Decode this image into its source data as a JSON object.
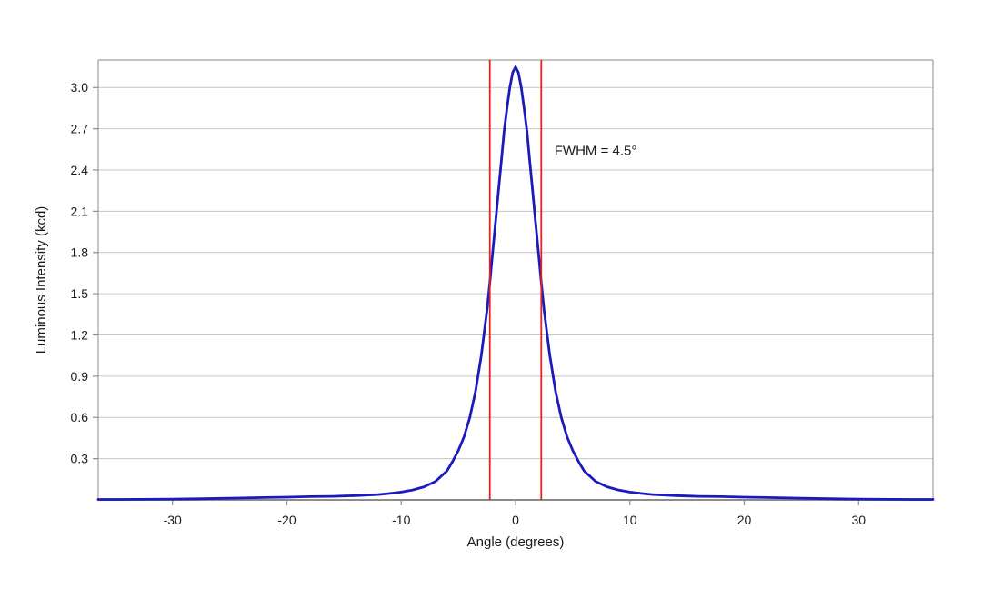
{
  "chart_data": {
    "type": "line",
    "title": "",
    "xlabel": "Angle (degrees)",
    "ylabel": "Luminous Intensity (kcd)",
    "xlim": [
      -36.5,
      36.5
    ],
    "ylim": [
      0,
      3.2
    ],
    "x_ticks": [
      -30,
      -20,
      -10,
      0,
      10,
      20,
      30
    ],
    "y_ticks": [
      0.3,
      0.6,
      0.9,
      1.2,
      1.5,
      1.8,
      2.1,
      2.4,
      2.7,
      3.0
    ],
    "grid": "horizontal",
    "legend": "none",
    "annotation": {
      "text": "FWHM = 4.5°",
      "x": 3.4,
      "y": 2.51
    },
    "reference_lines": [
      {
        "axis": "x",
        "value": -2.25,
        "color": "#e02222",
        "meaning": "fwhm-left"
      },
      {
        "axis": "x",
        "value": 2.25,
        "color": "#e02222",
        "meaning": "fwhm-right"
      }
    ],
    "series": [
      {
        "name": "luminous-intensity",
        "color": "#1a1abe",
        "peak": {
          "x": 0,
          "y": 3.15
        },
        "fwhm_degrees": 4.5,
        "points": [
          [
            -36.5,
            0.003
          ],
          [
            -35,
            0.003
          ],
          [
            -33,
            0.004
          ],
          [
            -30,
            0.006
          ],
          [
            -28,
            0.008
          ],
          [
            -25,
            0.012
          ],
          [
            -22,
            0.017
          ],
          [
            -20,
            0.02
          ],
          [
            -18,
            0.024
          ],
          [
            -16,
            0.026
          ],
          [
            -14,
            0.031
          ],
          [
            -12,
            0.039
          ],
          [
            -11,
            0.047
          ],
          [
            -10,
            0.057
          ],
          [
            -9,
            0.072
          ],
          [
            -8,
            0.095
          ],
          [
            -7,
            0.135
          ],
          [
            -6,
            0.21
          ],
          [
            -5.5,
            0.28
          ],
          [
            -5,
            0.36
          ],
          [
            -4.5,
            0.46
          ],
          [
            -4,
            0.6
          ],
          [
            -3.5,
            0.79
          ],
          [
            -3,
            1.05
          ],
          [
            -2.5,
            1.38
          ],
          [
            -2.25,
            1.58
          ],
          [
            -2,
            1.8
          ],
          [
            -1.75,
            2.02
          ],
          [
            -1.5,
            2.24
          ],
          [
            -1.25,
            2.46
          ],
          [
            -1,
            2.68
          ],
          [
            -0.75,
            2.85
          ],
          [
            -0.5,
            3.0
          ],
          [
            -0.25,
            3.11
          ],
          [
            0,
            3.15
          ],
          [
            0.25,
            3.11
          ],
          [
            0.5,
            3.0
          ],
          [
            0.75,
            2.85
          ],
          [
            1,
            2.68
          ],
          [
            1.25,
            2.46
          ],
          [
            1.5,
            2.24
          ],
          [
            1.75,
            2.02
          ],
          [
            2,
            1.8
          ],
          [
            2.25,
            1.58
          ],
          [
            2.5,
            1.38
          ],
          [
            3,
            1.05
          ],
          [
            3.5,
            0.79
          ],
          [
            4,
            0.6
          ],
          [
            4.5,
            0.46
          ],
          [
            5,
            0.36
          ],
          [
            5.5,
            0.28
          ],
          [
            6,
            0.21
          ],
          [
            7,
            0.135
          ],
          [
            8,
            0.095
          ],
          [
            9,
            0.072
          ],
          [
            10,
            0.057
          ],
          [
            11,
            0.047
          ],
          [
            12,
            0.039
          ],
          [
            14,
            0.031
          ],
          [
            16,
            0.026
          ],
          [
            18,
            0.024
          ],
          [
            20,
            0.02
          ],
          [
            22,
            0.017
          ],
          [
            25,
            0.012
          ],
          [
            28,
            0.008
          ],
          [
            30,
            0.006
          ],
          [
            33,
            0.004
          ],
          [
            35,
            0.003
          ],
          [
            36.5,
            0.003
          ]
        ]
      }
    ]
  },
  "colors": {
    "background": "#ffffff",
    "gridline": "#c6c6c6",
    "plot_border": "#a0a0a0",
    "axis_line": "#8c8c8c",
    "tick": "#8c8c8c",
    "text": "#1a1a1a",
    "series": "#1a1abe",
    "reference": "#e02222"
  }
}
